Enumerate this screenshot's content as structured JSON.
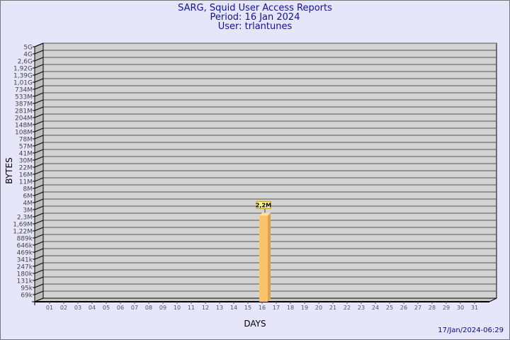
{
  "header": {
    "title": "SARG, Squid User Access Reports",
    "period": "Period: 16 Jan 2024",
    "user": "User: trlantunes"
  },
  "footer": {
    "timestamp": "17/Jan/2024-06:29"
  },
  "colors": {
    "background": "#e6e6fa",
    "plot": "#d3d3d3",
    "bar": "#fbc36a",
    "bar_side": "#e0a14a",
    "title": "#1010a0"
  },
  "chart_data": {
    "type": "bar",
    "xlabel": "DAYS",
    "ylabel": "BYTES",
    "y_scale": "log",
    "y_tick_labels": [
      "5G",
      "4G",
      "2,6G",
      "1,92G",
      "1,39G",
      "1,01G",
      "734M",
      "533M",
      "387M",
      "281M",
      "204M",
      "148M",
      "108M",
      "78M",
      "57M",
      "41M",
      "30M",
      "22M",
      "16M",
      "11M",
      "8M",
      "6M",
      "4M",
      "3M",
      "2,3M",
      "1,69M",
      "1,22M",
      "889k",
      "646k",
      "469k",
      "341k",
      "247k",
      "180k",
      "131k",
      "95k",
      "69k"
    ],
    "categories": [
      "01",
      "02",
      "03",
      "04",
      "05",
      "06",
      "07",
      "08",
      "09",
      "10",
      "11",
      "12",
      "13",
      "14",
      "15",
      "16",
      "17",
      "18",
      "19",
      "20",
      "21",
      "22",
      "23",
      "24",
      "25",
      "26",
      "27",
      "28",
      "29",
      "30",
      "31"
    ],
    "bars": [
      {
        "day": "16",
        "value": 2200000,
        "label": "2,2M"
      }
    ],
    "grid": true
  }
}
